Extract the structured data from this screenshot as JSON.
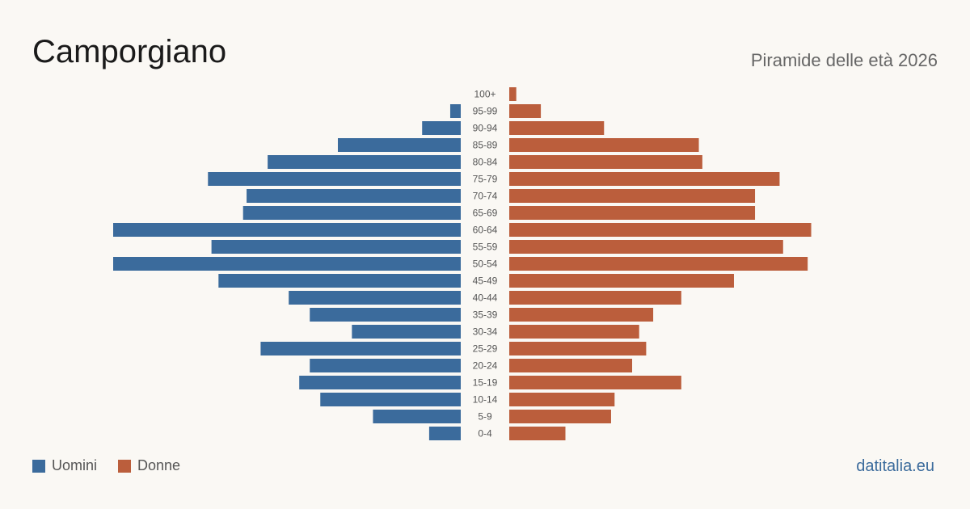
{
  "header": {
    "title": "Camporgiano",
    "subtitle": "Piramide delle età 2026"
  },
  "legend": {
    "men_label": "Uomini",
    "women_label": "Donne"
  },
  "brand": "datitalia.eu",
  "colors": {
    "men": "#3b6b9c",
    "women": "#bb5e3c",
    "background": "#faf8f4",
    "label": "#555555"
  },
  "chart_data": {
    "type": "bar",
    "orientation": "horizontal-pyramid",
    "categories": [
      "100+",
      "95-99",
      "90-94",
      "85-89",
      "80-84",
      "75-79",
      "70-74",
      "65-69",
      "60-64",
      "55-59",
      "50-54",
      "45-49",
      "40-44",
      "35-39",
      "30-34",
      "25-29",
      "20-24",
      "15-19",
      "10-14",
      "5-9",
      "0-4"
    ],
    "series": [
      {
        "name": "Uomini",
        "values": [
          0,
          3,
          11,
          35,
          55,
          72,
          61,
          62,
          99,
          71,
          99,
          69,
          49,
          43,
          31,
          57,
          43,
          46,
          40,
          25,
          9
        ]
      },
      {
        "name": "Donne",
        "values": [
          2,
          9,
          27,
          54,
          55,
          77,
          70,
          70,
          86,
          78,
          85,
          64,
          49,
          41,
          37,
          39,
          35,
          49,
          30,
          29,
          16
        ]
      }
    ],
    "xlim": [
      0,
      99
    ],
    "grid": false,
    "legend_position": "bottom-left"
  }
}
